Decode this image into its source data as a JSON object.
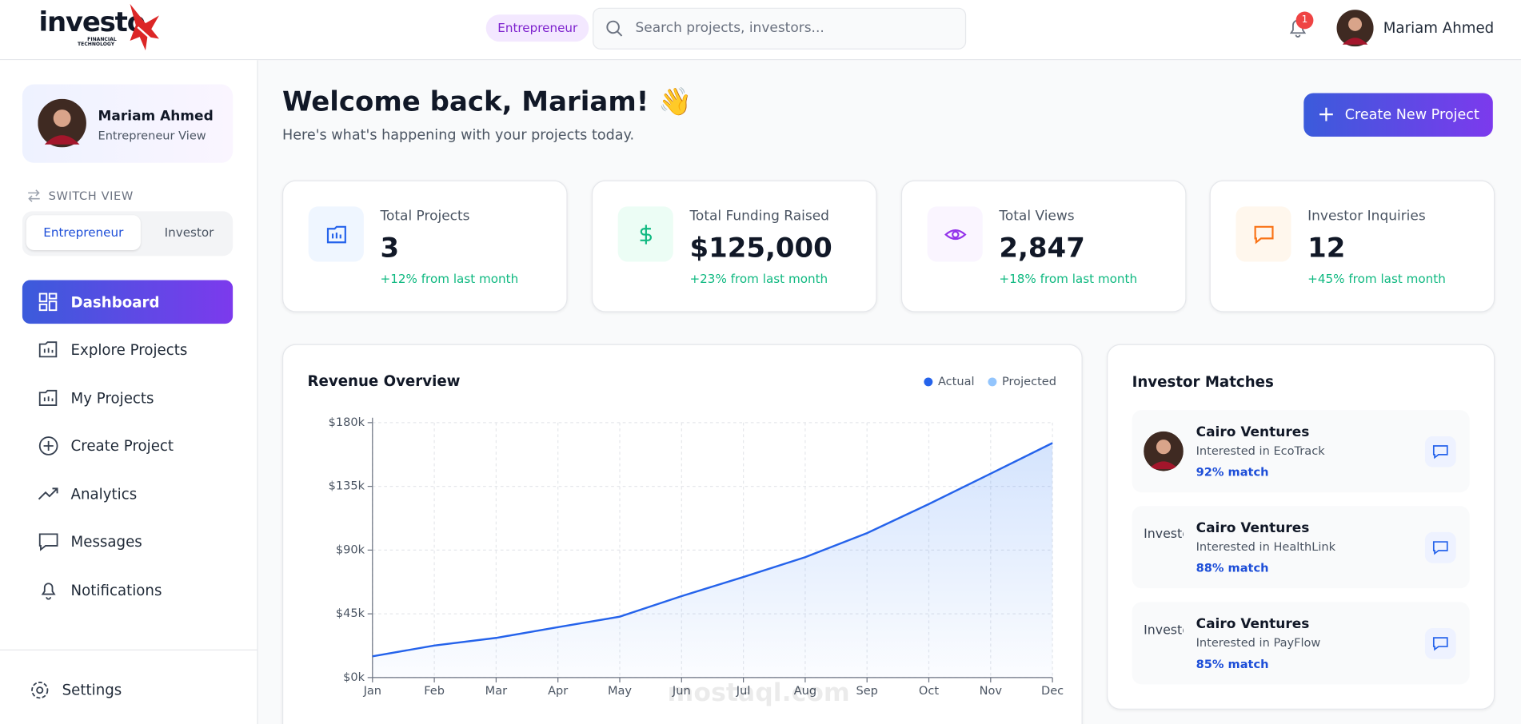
{
  "header": {
    "brand": "investo",
    "brand_sub1": "FINANCIAL",
    "brand_sub2": "TECHNOLOGY",
    "role_badge": "Entrepreneur",
    "search_placeholder": "Search projects, investors...",
    "notification_count": "1",
    "user_name": "Mariam Ahmed"
  },
  "sidebar": {
    "profile_name": "Mariam Ahmed",
    "profile_role": "Entrepreneur View",
    "switch_label": "SWITCH VIEW",
    "switch_options": [
      "Entrepreneur",
      "Investor"
    ],
    "nav": [
      "Dashboard",
      "Explore Projects",
      "My Projects",
      "Create Project",
      "Analytics",
      "Messages",
      "Notifications"
    ],
    "settings": "Settings"
  },
  "welcome": {
    "title": "Welcome back, Mariam! 👋",
    "subtitle": "Here's what's happening with your projects today.",
    "button": "Create New Project"
  },
  "stats": [
    {
      "label": "Total Projects",
      "value": "3",
      "change": "+12% from last month"
    },
    {
      "label": "Total Funding Raised",
      "value": "$125,000",
      "change": "+23% from last month"
    },
    {
      "label": "Total Views",
      "value": "2,847",
      "change": "+18% from last month"
    },
    {
      "label": "Investor Inquiries",
      "value": "12",
      "change": "+45% from last month"
    }
  ],
  "chart_data": {
    "type": "area",
    "title": "Revenue Overview",
    "categories": [
      "Jan",
      "Feb",
      "Mar",
      "Apr",
      "May",
      "Jun",
      "Jul",
      "Aug",
      "Sep",
      "Oct",
      "Nov",
      "Dec"
    ],
    "series": [
      {
        "name": "Actual",
        "color": "#2563eb",
        "values": [
          15,
          22.6,
          28,
          35.6,
          43,
          57.5,
          71,
          85,
          102,
          122.5,
          144,
          165.6
        ]
      },
      {
        "name": "Projected",
        "color": "#93c5fd"
      }
    ],
    "ylim": [
      0,
      180
    ],
    "yticks": [
      {
        "value": 0,
        "label": "$0k"
      },
      {
        "value": 45,
        "label": "$45k"
      },
      {
        "value": 90,
        "label": "$90k"
      },
      {
        "value": 135,
        "label": "$135k"
      },
      {
        "value": 180,
        "label": "$180k"
      }
    ],
    "grid": true,
    "legend": "top-right"
  },
  "investor_matches": {
    "title": "Investor Matches",
    "items": [
      {
        "name": "Cairo Ventures",
        "interest": "Interested in EcoTrack",
        "match": "92% match"
      },
      {
        "name": "Cairo Ventures",
        "interest": "Interested in HealthLink",
        "match": "88% match",
        "avatar_alt": "Investor"
      },
      {
        "name": "Cairo Ventures",
        "interest": "Interested in PayFlow",
        "match": "85% match",
        "avatar_alt": "Investor"
      }
    ]
  },
  "watermark": "mostaql.com"
}
